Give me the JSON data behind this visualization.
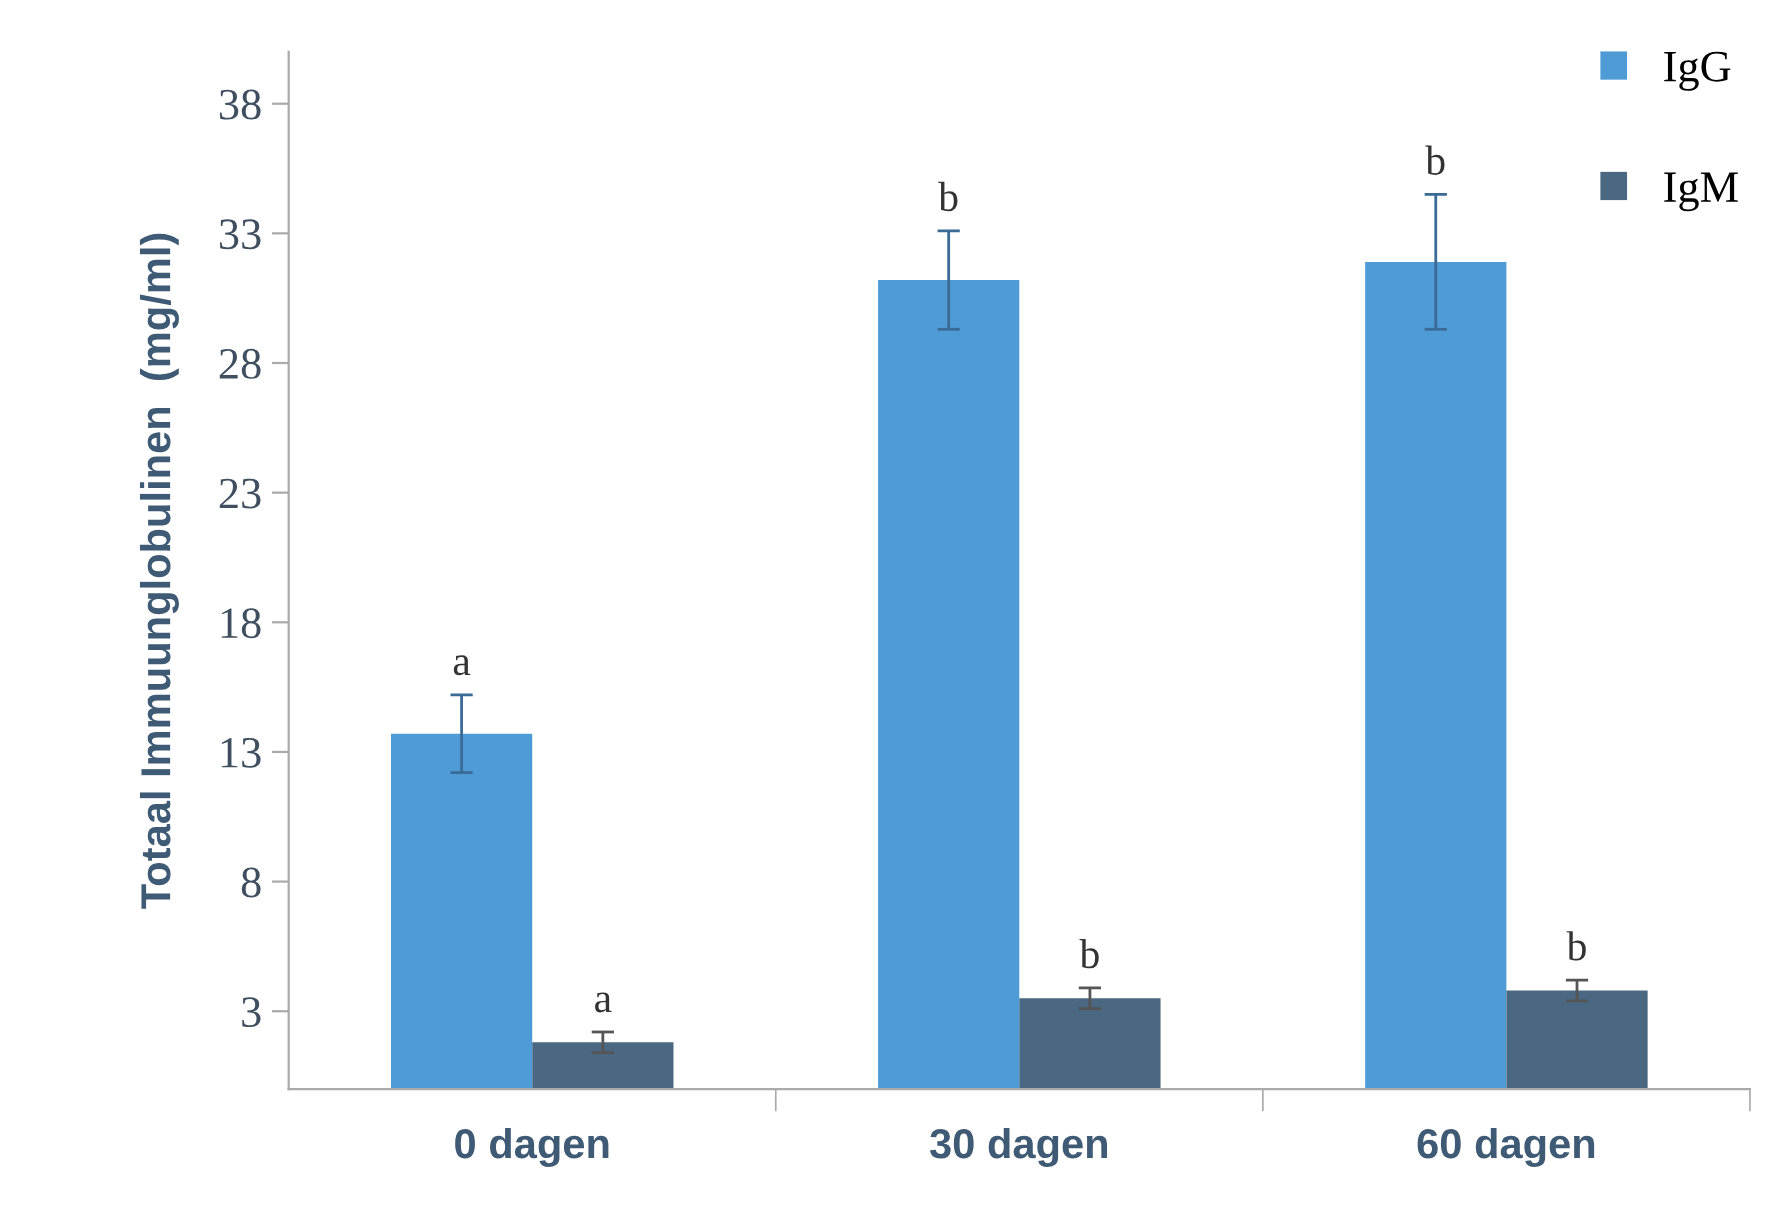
{
  "chart_data": {
    "type": "bar",
    "ylabel": "Totaal Immuunglobulinen  (mg/ml)",
    "categories": [
      "0 dagen",
      "30 dagen",
      "60 dagen"
    ],
    "series": [
      {
        "name": "IgG",
        "color": "#4f9bd6",
        "values": [
          13.7,
          31.2,
          31.9
        ],
        "errors": [
          1.5,
          1.9,
          2.6
        ],
        "value_labels": [
          "a",
          "b",
          "b"
        ]
      },
      {
        "name": "IgM",
        "color": "#4a6882",
        "values": [
          1.8,
          3.5,
          3.8
        ],
        "errors": [
          0.4,
          0.4,
          0.4
        ],
        "value_labels": [
          "a",
          "b",
          "b"
        ]
      }
    ],
    "ylim": [
      0,
      40
    ],
    "yticks": [
      3,
      8,
      13,
      18,
      23,
      28,
      33,
      38
    ],
    "grid": false,
    "legend": "top right"
  }
}
